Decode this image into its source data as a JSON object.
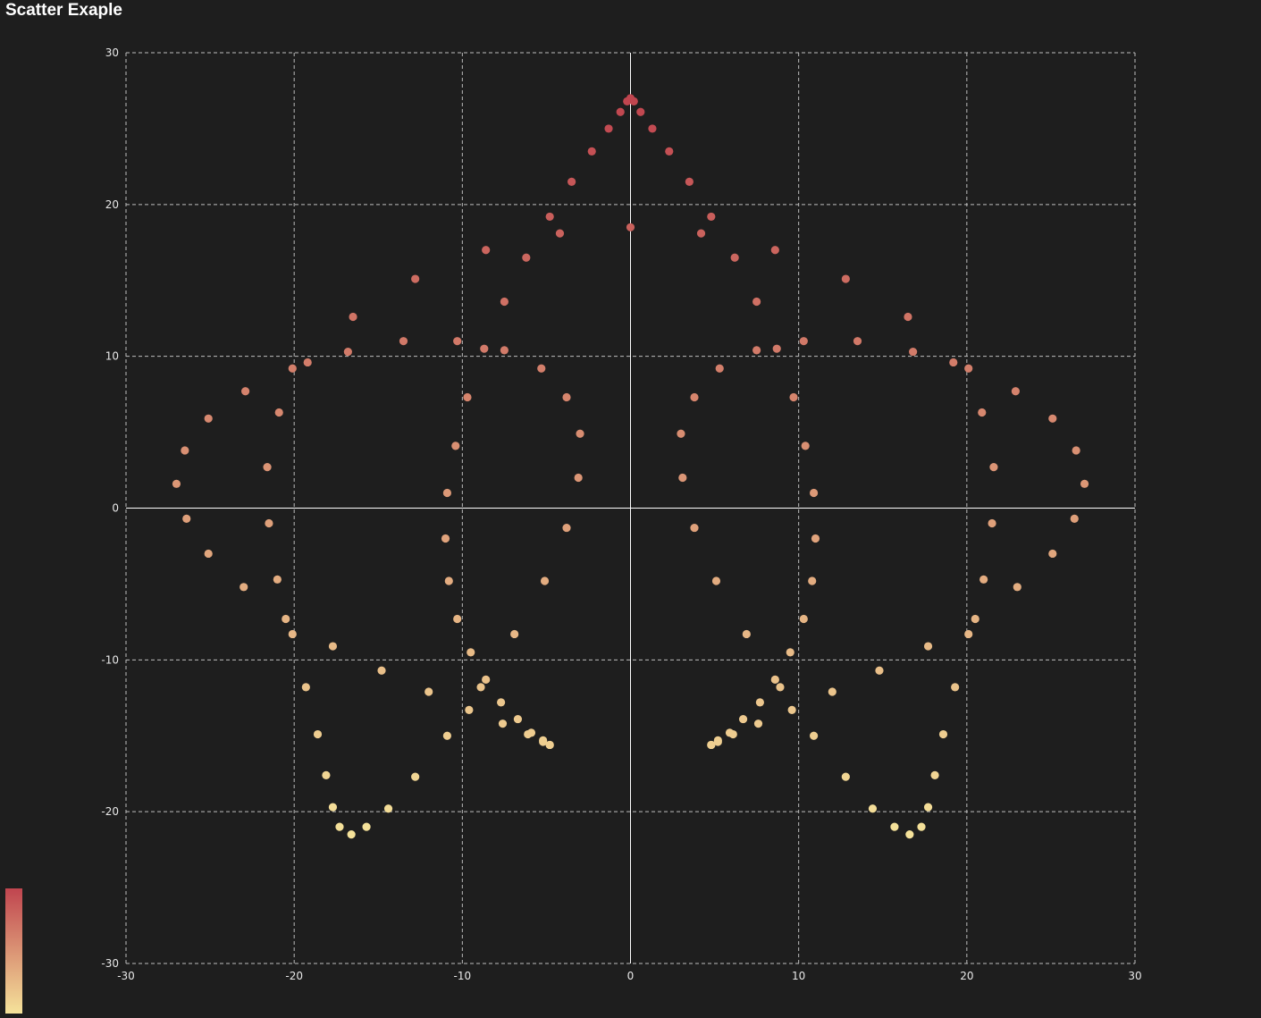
{
  "title": "Scatter Exaple",
  "visual_map": {
    "color_max": "#c0454f",
    "color_min": "#f5e29a"
  },
  "chart_data": {
    "type": "scatter",
    "title": "Scatter Exaple",
    "xlabel": "",
    "ylabel": "",
    "xlim": [
      -30,
      30
    ],
    "ylim": [
      -30,
      30
    ],
    "x_ticks": [
      -30,
      -20,
      -10,
      0,
      10,
      20,
      30
    ],
    "y_ticks": [
      -30,
      -20,
      -10,
      0,
      10,
      20,
      30
    ],
    "grid": true,
    "grid_style": "dashed",
    "point_color": "gradient by y value (high = red, low = yellow)",
    "series": [
      {
        "description": "rose curve r = 27*sin(3/5*t)",
        "x": [
          0.0,
          0.2,
          0.6,
          1.3,
          2.3,
          3.5,
          4.8,
          6.2,
          7.5,
          8.7,
          9.7,
          10.4,
          10.9,
          11.0,
          10.8,
          10.3,
          9.5,
          8.6,
          7.7,
          6.7,
          5.9,
          5.2,
          4.8,
          4.8,
          5.2,
          6.1,
          7.6,
          9.6,
          12.0,
          14.8,
          17.7,
          20.5,
          23.0,
          25.1,
          26.4,
          27.0,
          26.5,
          25.1,
          22.9,
          20.1,
          16.8,
          13.5,
          10.3,
          7.5,
          5.3,
          3.8,
          3.0,
          3.1,
          3.8,
          5.1,
          6.9,
          8.9,
          10.9,
          12.8,
          14.4,
          15.7,
          16.6,
          17.3,
          17.7,
          18.1,
          18.6,
          19.3,
          20.1,
          21.0,
          21.5,
          21.6,
          20.9,
          19.2,
          16.5,
          12.8,
          8.6,
          4.2,
          0.0,
          -4.2,
          -8.6,
          -12.8,
          -16.5,
          -19.2,
          -20.9,
          -21.6,
          -21.5,
          -21.0,
          -20.1,
          -19.3,
          -18.6,
          -18.1,
          -17.7,
          -17.3,
          -16.6,
          -15.7,
          -14.4,
          -12.8,
          -10.9,
          -8.9,
          -6.9,
          -5.1,
          -3.8,
          -3.1,
          -3.0,
          -3.8,
          -5.3,
          -7.5,
          -10.3,
          -13.5,
          -16.8,
          -20.1,
          -22.9,
          -25.1,
          -26.5,
          -27.0,
          -26.4,
          -25.1,
          -23.0,
          -20.5,
          -17.7,
          -14.8,
          -12.0,
          -9.6,
          -7.6,
          -6.1,
          -5.2,
          -4.8,
          -4.8,
          -5.2,
          -5.9,
          -6.7,
          -7.7,
          -8.6,
          -9.5,
          -10.3,
          -10.8,
          -11.0,
          -10.9,
          -10.4,
          -9.7,
          -8.7,
          -7.5,
          -6.2,
          -4.8,
          -3.5,
          -2.3,
          -1.3,
          -0.6,
          -0.2,
          0.0
        ],
        "y": [
          27.0,
          26.8,
          26.1,
          25.0,
          23.5,
          21.5,
          19.2,
          16.5,
          13.6,
          10.5,
          7.3,
          4.1,
          1.0,
          -2.0,
          -4.8,
          -7.3,
          -9.5,
          -11.3,
          -12.8,
          -13.9,
          -14.8,
          -15.3,
          -15.6,
          -15.6,
          -15.4,
          -14.9,
          -14.2,
          -13.3,
          -12.1,
          -10.7,
          -9.1,
          -7.3,
          -5.2,
          -3.0,
          -0.7,
          1.6,
          3.8,
          5.9,
          7.7,
          9.2,
          10.3,
          11.0,
          11.0,
          10.4,
          9.2,
          7.3,
          4.9,
          2.0,
          -1.3,
          -4.8,
          -8.3,
          -11.8,
          -15.0,
          -17.7,
          -19.8,
          -21.0,
          -21.5,
          -21.0,
          -19.7,
          -17.6,
          -14.9,
          -11.8,
          -8.3,
          -4.7,
          -1.0,
          2.7,
          6.3,
          9.6,
          12.6,
          15.1,
          17.0,
          18.1,
          18.5,
          18.1,
          17.0,
          15.1,
          12.6,
          9.6,
          6.3,
          2.7,
          -1.0,
          -4.7,
          -8.3,
          -11.8,
          -14.9,
          -17.6,
          -19.7,
          -21.0,
          -21.5,
          -21.0,
          -19.8,
          -17.7,
          -15.0,
          -11.8,
          -8.3,
          -4.8,
          -1.3,
          2.0,
          4.9,
          7.3,
          9.2,
          10.4,
          11.0,
          11.0,
          10.3,
          9.2,
          7.7,
          5.9,
          3.8,
          1.6,
          -0.7,
          -3.0,
          -5.2,
          -7.3,
          -9.1,
          -10.7,
          -12.1,
          -13.3,
          -14.2,
          -14.9,
          -15.4,
          -15.6,
          -15.6,
          -15.3,
          -14.8,
          -13.9,
          -12.8,
          -11.3,
          -9.5,
          -7.3,
          -4.8,
          -2.0,
          1.0,
          4.1,
          7.3,
          10.5,
          13.6,
          16.5,
          19.2,
          21.5,
          23.5,
          25.0,
          26.1,
          26.8,
          27.0
        ]
      }
    ]
  }
}
